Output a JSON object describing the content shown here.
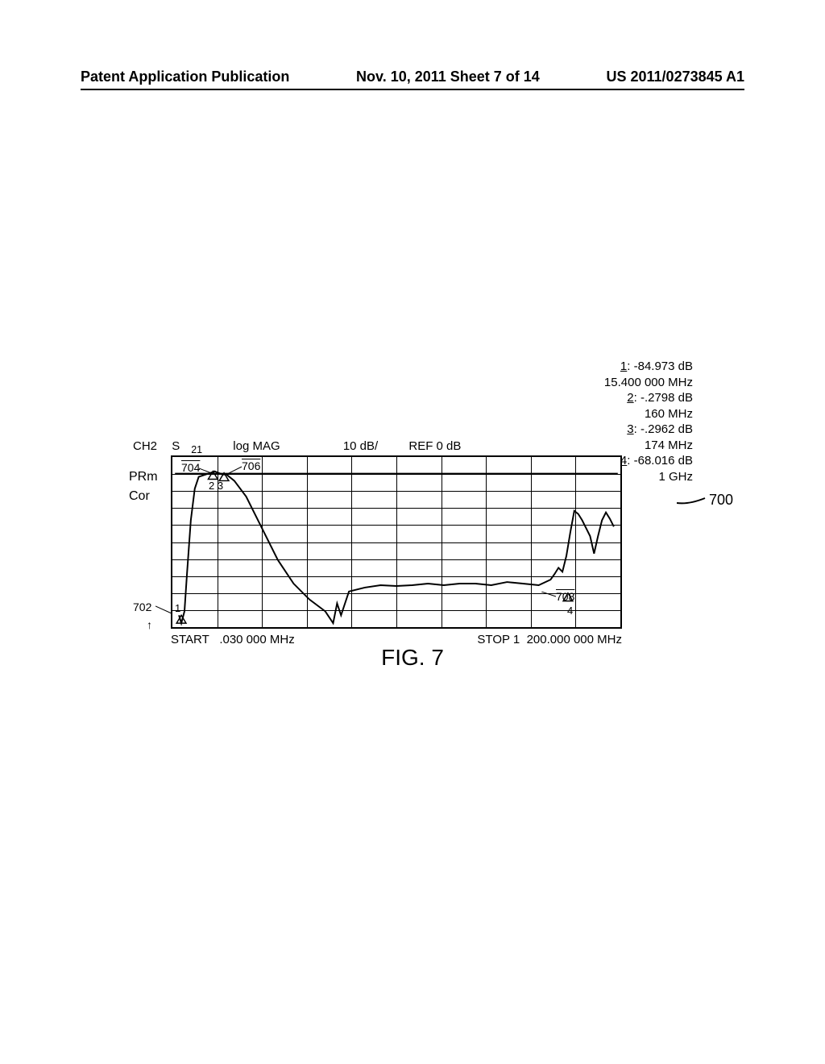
{
  "header": {
    "left": "Patent Application Publication",
    "center": "Nov. 10, 2011  Sheet 7 of 14",
    "right": "US 2011/0273845 A1"
  },
  "markers": {
    "m1_label": "1",
    "m1_value": ": -84.973 dB",
    "m1_freq": "15.400 000 MHz",
    "m2_label": "2",
    "m2_value": ": -.2798 dB",
    "m2_freq": "160 MHz",
    "m3_label": "3",
    "m3_value": ": -.2962 dB",
    "m3_freq": "174 MHz",
    "m4_label": "4",
    "m4_value": ": -68.016 dB",
    "m4_freq": "1 GHz"
  },
  "chart_header": {
    "ch": "CH2",
    "param": "S",
    "param_sub": "21",
    "format": "log MAG",
    "scale": "10 dB/",
    "ref": "REF 0 dB"
  },
  "side_labels": {
    "l1": "PRm",
    "l2": "Cor"
  },
  "x_axis": {
    "start_label": "START",
    "start_freq": ".030 000 MHz",
    "stop_label": "STOP 1",
    "stop_freq": "200.000 000 MHz"
  },
  "refs": {
    "r702_label": "702",
    "r704_label": "704",
    "r706_label": "706",
    "r708_label": "708",
    "r700_label": "700"
  },
  "markers_inline": {
    "m23": "2  3",
    "m1": "1",
    "m4": "4"
  },
  "figure_label": "FIG. 7",
  "chart": {
    "type": "line",
    "background_color": "#ffffff",
    "line_color": "#000000",
    "grid_color": "#000000",
    "line_width": 2,
    "n_h_gridlines": 10,
    "n_v_gridlines": 10,
    "curve_points": [
      [
        5,
        200
      ],
      [
        8,
        210
      ],
      [
        12,
        195
      ],
      [
        15,
        150
      ],
      [
        20,
        80
      ],
      [
        25,
        40
      ],
      [
        30,
        25
      ],
      [
        45,
        20
      ],
      [
        50,
        18
      ],
      [
        55,
        20
      ],
      [
        60,
        22
      ],
      [
        65,
        22
      ],
      [
        75,
        30
      ],
      [
        90,
        50
      ],
      [
        110,
        90
      ],
      [
        130,
        130
      ],
      [
        150,
        160
      ],
      [
        170,
        180
      ],
      [
        190,
        195
      ],
      [
        200,
        210
      ],
      [
        205,
        185
      ],
      [
        210,
        200
      ],
      [
        220,
        170
      ],
      [
        240,
        165
      ],
      [
        260,
        162
      ],
      [
        280,
        163
      ],
      [
        300,
        162
      ],
      [
        320,
        160
      ],
      [
        340,
        162
      ],
      [
        360,
        160
      ],
      [
        380,
        160
      ],
      [
        400,
        162
      ],
      [
        420,
        158
      ],
      [
        440,
        160
      ],
      [
        460,
        162
      ],
      [
        475,
        155
      ],
      [
        480,
        148
      ],
      [
        485,
        140
      ],
      [
        490,
        145
      ],
      [
        495,
        125
      ],
      [
        500,
        95
      ],
      [
        505,
        68
      ],
      [
        510,
        72
      ],
      [
        515,
        80
      ],
      [
        520,
        90
      ],
      [
        525,
        100
      ],
      [
        530,
        122
      ],
      [
        535,
        100
      ],
      [
        540,
        80
      ],
      [
        545,
        70
      ],
      [
        550,
        78
      ],
      [
        555,
        88
      ]
    ]
  }
}
